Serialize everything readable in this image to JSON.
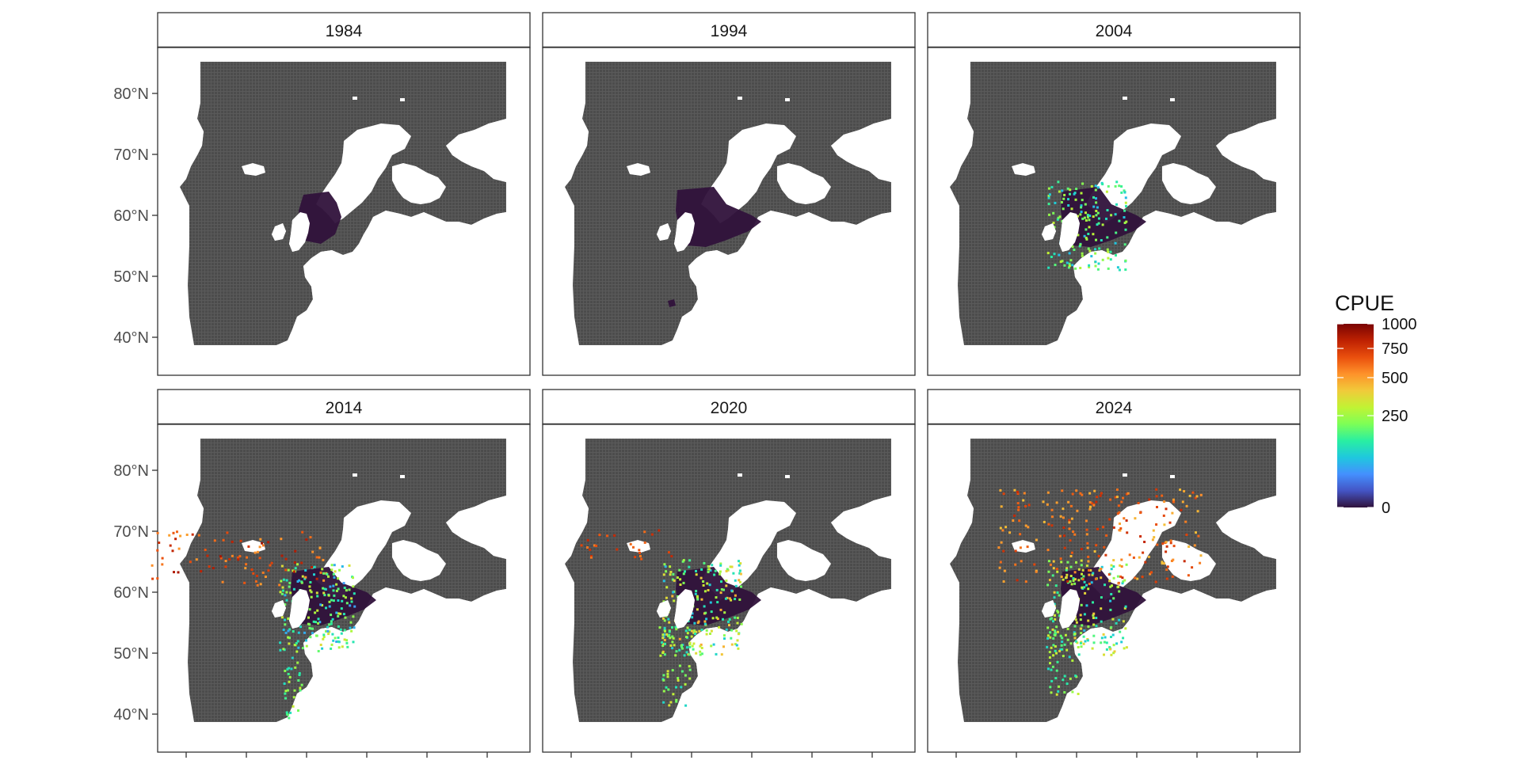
{
  "figure": {
    "title": "",
    "lat_axis_labels": [
      "80°N",
      "70°N",
      "60°N",
      "50°N",
      "40°N"
    ],
    "lat_axis_values": [
      80,
      70,
      60,
      50,
      40
    ],
    "lon_tick_count": 6,
    "grid_visible": false
  },
  "colors": {
    "ocean_grid": "#595959",
    "land": "#ffffff",
    "strip_bg": "#ffffff",
    "panel_border": "#333333",
    "tick_label": "#4d4d4d",
    "low_cpue": "#30123b"
  },
  "panels": [
    {
      "year": "1984"
    },
    {
      "year": "1994"
    },
    {
      "year": "2004"
    },
    {
      "year": "2014"
    },
    {
      "year": "2020"
    },
    {
      "year": "2024"
    }
  ],
  "legend": {
    "title": "CPUE",
    "labels": [
      "1000",
      "750",
      "500",
      "250",
      "0"
    ],
    "values": [
      1000,
      750,
      500,
      250,
      0
    ],
    "scale": "sqrt",
    "palette": [
      "#30123b",
      "#4454c4",
      "#4490fe",
      "#1fc8de",
      "#29efa2",
      "#7dff56",
      "#c1f334",
      "#f1ca3a",
      "#fe922a",
      "#ea4f0d",
      "#be2102",
      "#7a0403"
    ]
  }
}
